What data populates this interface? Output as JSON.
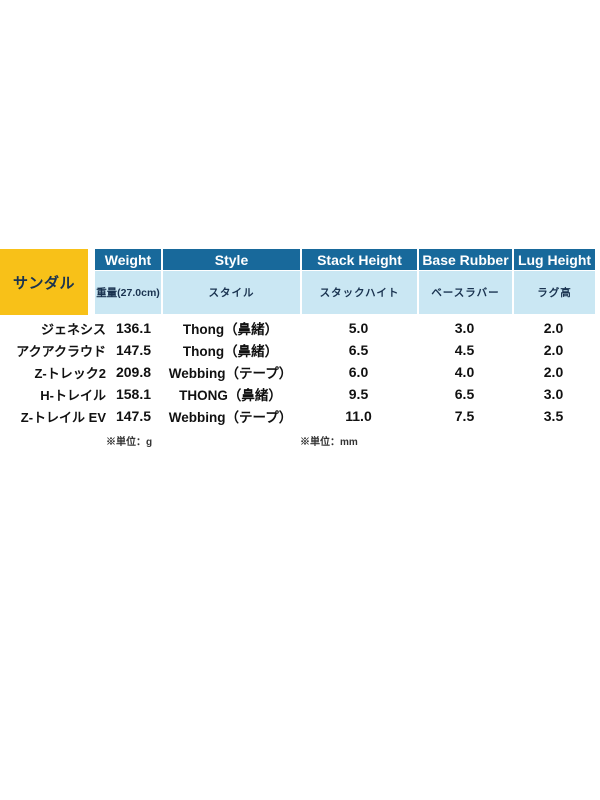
{
  "colors": {
    "header_blue": "#18699B",
    "subheader_lightblue": "#CAE7F3",
    "corner_yellow": "#F8C118",
    "header_text": "#FFFFFF",
    "subheader_text": "#1A3350",
    "body_text": "#111111"
  },
  "chart_data": {
    "type": "table",
    "title": "サンダル",
    "corner_label": "サンダル",
    "columns": [
      {
        "en": "Weight",
        "ja": "重量(27.0cm)"
      },
      {
        "en": "Style",
        "ja": "スタイル"
      },
      {
        "en": "Stack Height",
        "ja": "スタックハイト"
      },
      {
        "en": "Base Rubber",
        "ja": "ベースラバー"
      },
      {
        "en": "Lug Height",
        "ja": "ラグ高"
      }
    ],
    "rows": [
      {
        "name": "ジェネシス",
        "weight": "136.1",
        "style": "Thong（鼻緒）",
        "stack": "5.0",
        "base": "3.0",
        "lug": "2.0"
      },
      {
        "name": "アクアクラウド",
        "weight": "147.5",
        "style": "Thong（鼻緒）",
        "stack": "6.5",
        "base": "4.5",
        "lug": "2.0"
      },
      {
        "name": "Z-トレック2",
        "weight": "209.8",
        "style": "Webbing（テープ）",
        "stack": "6.0",
        "base": "4.0",
        "lug": "2.0"
      },
      {
        "name": "H-トレイル",
        "weight": "158.1",
        "style": "THONG（鼻緒）",
        "stack": "9.5",
        "base": "6.5",
        "lug": "3.0"
      },
      {
        "name": "Z-トレイル EV",
        "weight": "147.5",
        "style": "Webbing（テープ）",
        "stack": "11.0",
        "base": "7.5",
        "lug": "3.5"
      }
    ],
    "footnotes": {
      "weight_unit": "※単位：g",
      "stack_unit": "※単位：mm"
    }
  }
}
